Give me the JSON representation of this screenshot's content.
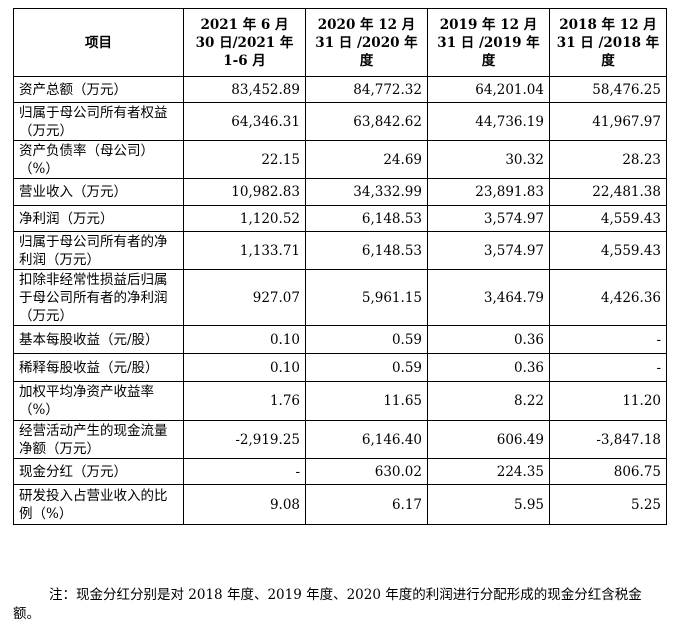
{
  "table": {
    "headers": [
      "项目",
      "2021 年 6 月 30 日/2021 年 1-6 月",
      "2020 年 12 月 31 日 /2020 年度",
      "2019 年 12 月 31 日 /2019 年度",
      "2018 年 12 月 31 日 /2018 年度"
    ],
    "rows": [
      {
        "label": "资产总额（万元）",
        "values": [
          "83,452.89",
          "84,772.32",
          "64,201.04",
          "58,476.25"
        ]
      },
      {
        "label": "归属于母公司所有者权益（万元）",
        "values": [
          "64,346.31",
          "63,842.62",
          "44,736.19",
          "41,967.97"
        ]
      },
      {
        "label": "资产负债率（母公司）（%）",
        "values": [
          "22.15",
          "24.69",
          "30.32",
          "28.23"
        ]
      },
      {
        "label": "营业收入（万元）",
        "values": [
          "10,982.83",
          "34,332.99",
          "23,891.83",
          "22,481.38"
        ]
      },
      {
        "label": "净利润（万元）",
        "values": [
          "1,120.52",
          "6,148.53",
          "3,574.97",
          "4,559.43"
        ]
      },
      {
        "label": "归属于母公司所有者的净利润（万元）",
        "values": [
          "1,133.71",
          "6,148.53",
          "3,574.97",
          "4,559.43"
        ]
      },
      {
        "label": "扣除非经常性损益后归属于母公司所有者的净利润（万元）",
        "values": [
          "927.07",
          "5,961.15",
          "3,464.79",
          "4,426.36"
        ]
      },
      {
        "label": "基本每股收益（元/股）",
        "values": [
          "0.10",
          "0.59",
          "0.36",
          "-"
        ]
      },
      {
        "label": "稀释每股收益（元/股）",
        "values": [
          "0.10",
          "0.59",
          "0.36",
          "-"
        ]
      },
      {
        "label": "加权平均净资产收益率（%）",
        "values": [
          "1.76",
          "11.65",
          "8.22",
          "11.20"
        ]
      },
      {
        "label": "经营活动产生的现金流量净额（万元）",
        "values": [
          "-2,919.25",
          "6,146.40",
          "606.49",
          "-3,847.18"
        ]
      },
      {
        "label": "现金分红（万元）",
        "values": [
          "-",
          "630.02",
          "224.35",
          "806.75"
        ]
      },
      {
        "label": "研发投入占营业收入的比例（%）",
        "values": [
          "9.08",
          "6.17",
          "5.95",
          "5.25"
        ]
      }
    ]
  },
  "note": "注：现金分红分别是对 2018 年度、2019 年度、2020 年度的利润进行分配形成的现金分红含税金额。"
}
